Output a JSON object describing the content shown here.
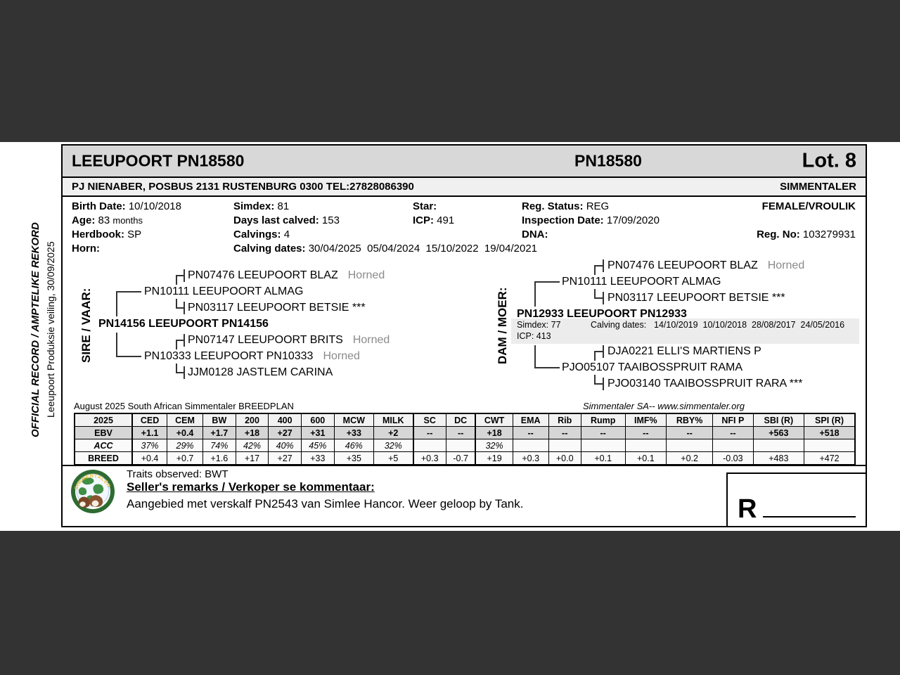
{
  "header": {
    "title_left": "LEEUPOORT PN18580",
    "title_center": "PN18580",
    "lot": "Lot. 8",
    "seller_line": "PJ NIENABER, POSBUS 2131 RUSTENBURG 0300 TEL:27828086390",
    "breed": "SIMMENTALER"
  },
  "sidebar": {
    "official_record": "OFFICIAL RECORD / AMPTELIKE REKORD",
    "event": "Leeupoort Produksie veiling, 30/09/2025"
  },
  "info": {
    "birth_date_label": "Birth Date:",
    "birth_date": "10/10/2018",
    "age_label": "Age:",
    "age": "83",
    "age_unit": "months",
    "herdbook_label": "Herdbook:",
    "herdbook": "SP",
    "horn_label": "Horn:",
    "horn": "",
    "simdex_label": "Simdex:",
    "simdex": "81",
    "days_last_calved_label": "Days last calved:",
    "days_last_calved": "153",
    "calvings_label": "Calvings:",
    "calvings": "4",
    "calving_dates_label": "Calving dates:",
    "calving_dates": "30/04/2025  05/04/2024  15/10/2022  19/04/2021",
    "star_label": "Star:",
    "star": "",
    "icp_label": "ICP:",
    "icp": "491",
    "reg_status_label": "Reg. Status:",
    "reg_status": "REG",
    "inspection_label": "Inspection Date:",
    "inspection": "17/09/2020",
    "dna_label": "DNA:",
    "dna": "",
    "sex": "FEMALE/VROULIK",
    "reg_no_label": "Reg. No:",
    "reg_no": "103279931"
  },
  "sire_tree": {
    "label": "SIRE / VAAR:",
    "main": "PN14156 LEEUPOORT PN14156",
    "s": "PN10111 LEEUPOORT ALMAG",
    "s_note": "",
    "ss": "PN07476 LEEUPOORT BLAZ",
    "ss_note": "Horned",
    "sd": "PN03117 LEEUPOORT BETSIE ***",
    "sd_note": "",
    "d": "PN10333 LEEUPOORT PN10333",
    "d_note": "Horned",
    "ds": "PN07147 LEEUPOORT BRITS",
    "ds_note": "Horned",
    "dd": "JJM0128 JASTLEM CARINA",
    "dd_note": ""
  },
  "dam_tree": {
    "label": "DAM / MOER:",
    "main": "PN12933 LEEUPOORT PN12933",
    "simdex": "Simdex: 77",
    "calving_label": "Calving dates:",
    "calving_dates": "14/10/2019  10/10/2018  28/08/2017  24/05/2016",
    "icp": "ICP: 413",
    "s": "PN10111 LEEUPOORT ALMAG",
    "s_note": "",
    "ss": "PN07476 LEEUPOORT BLAZ",
    "ss_note": "Horned",
    "sd": "PN03117 LEEUPOORT BETSIE ***",
    "sd_note": "",
    "d": "PJO05107 TAAIBOSSPRUIT RAMA",
    "d_note": "",
    "ds": "DJA0221 ELLI'S MARTIENS P",
    "ds_note": "",
    "dd": "PJO03140 TAAIBOSSPRUIT RARA ***",
    "dd_note": ""
  },
  "breedplan": {
    "caption_left": "August 2025 South African Simmentaler BREEDPLAN",
    "caption_right": "Simmentaler SA-- www.simmentaler.org",
    "table": {
      "headers": [
        "2025",
        "CED",
        "CEM",
        "BW",
        "200",
        "400",
        "600",
        "MCW",
        "MILK",
        "SC",
        "DC",
        "CWT",
        "EMA",
        "Rib",
        "Rump",
        "IMF%",
        "RBY%",
        "NFI P",
        "SBI (R)",
        "SPI (R)"
      ],
      "rows": [
        {
          "label": "EBV",
          "values": [
            "+1.1",
            "+0.4",
            "+1.7",
            "+18",
            "+27",
            "+31",
            "+33",
            "+2",
            "--",
            "--",
            "+18",
            "--",
            "--",
            "--",
            "--",
            "--",
            "--",
            "+563",
            "+518"
          ]
        },
        {
          "label": "ACC",
          "values": [
            "37%",
            "29%",
            "74%",
            "42%",
            "40%",
            "45%",
            "46%",
            "32%",
            "",
            "",
            "32%",
            "",
            "",
            "",
            "",
            "",
            "",
            "",
            ""
          ]
        },
        {
          "label": "BREED",
          "values": [
            "+0.4",
            "+0.7",
            "+1.6",
            "+17",
            "+27",
            "+33",
            "+35",
            "+5",
            "+0.3",
            "-0.7",
            "+19",
            "+0.3",
            "+0.0",
            "+0.1",
            "+0.1",
            "+0.2",
            "-0.03",
            "+483",
            "+472"
          ]
        }
      ]
    }
  },
  "footer": {
    "traits": "Traits observed: BWT",
    "remarks_label": "Seller's remarks / Verkoper se kommentaar:",
    "remarks": "Aangebied met verskalf PN2543 van Simlee Hancor. Weer geloop by Tank.",
    "price_prefix": "R",
    "logo_text": "SIMMENTALER"
  }
}
